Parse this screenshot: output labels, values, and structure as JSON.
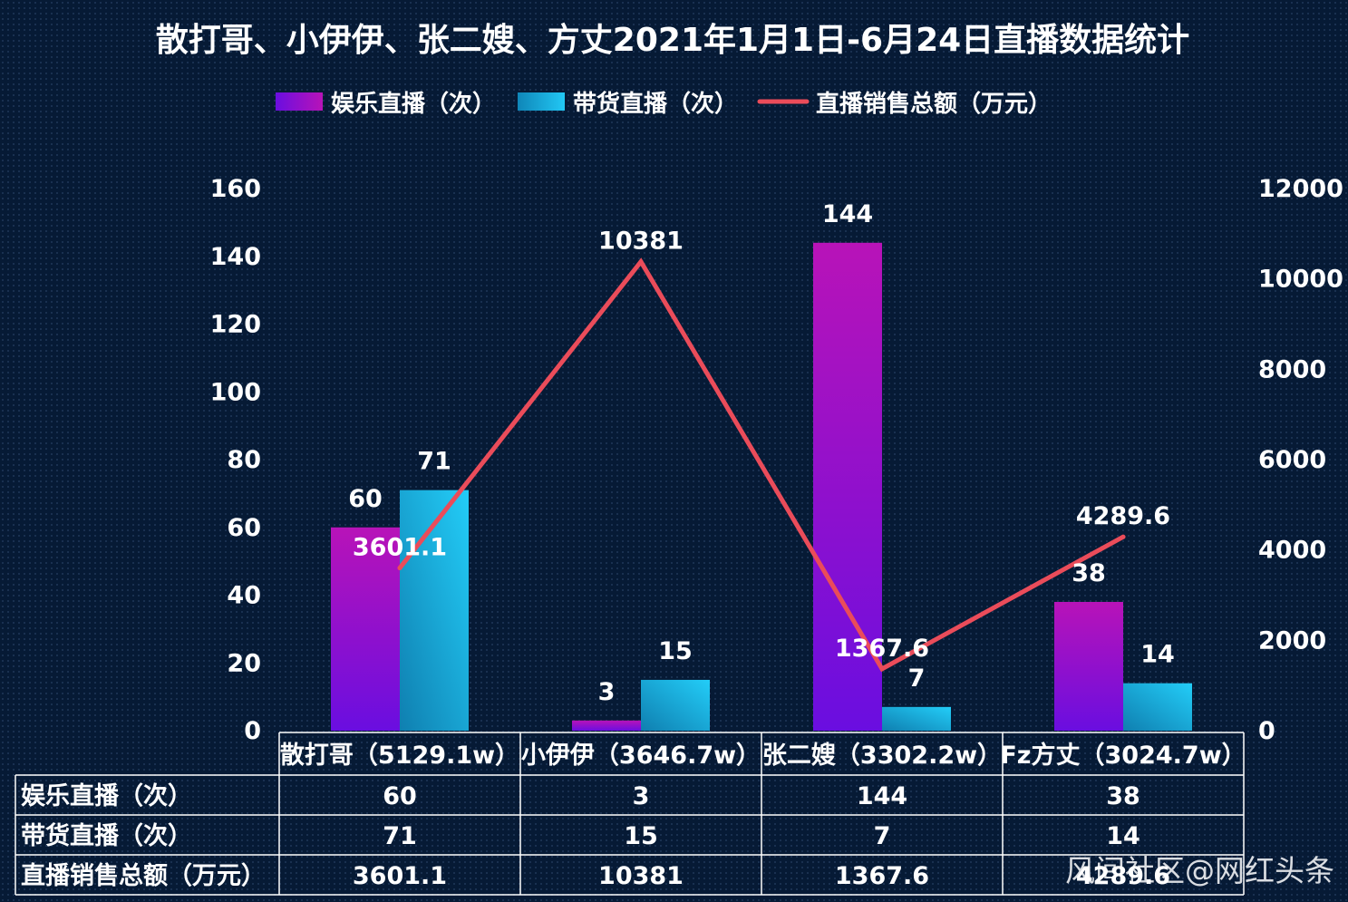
{
  "chart_data": {
    "type": "bar",
    "title": "散打哥、小伊伊、张二嫂、方丈2021年1月1日-6月24日直播数据统计",
    "categories": [
      "散打哥（5129.1w）",
      "小伊伊（3646.7w）",
      "张二嫂（3302.2w）",
      "Fz方丈（3024.7w）"
    ],
    "series": [
      {
        "name": "娱乐直播（次）",
        "type": "bar",
        "axis": "left",
        "values": [
          60,
          3,
          144,
          38
        ],
        "value_labels": [
          "60",
          "3",
          "144",
          "38"
        ],
        "colors": [
          "#6a0ee0",
          "#b813b8"
        ]
      },
      {
        "name": "带货直播（次）",
        "type": "bar",
        "axis": "left",
        "values": [
          71,
          15,
          7,
          14
        ],
        "value_labels": [
          "71",
          "15",
          "7",
          "14"
        ],
        "colors": [
          "#0f86b8",
          "#22c8f5"
        ]
      },
      {
        "name": "直播销售总额（万元）",
        "type": "line",
        "axis": "right",
        "values": [
          3601.1,
          10381,
          1367.6,
          4289.6
        ],
        "value_labels": [
          "3601.1",
          "10381",
          "1367.6",
          "4289.6"
        ],
        "colors": [
          "#ea4c5a"
        ]
      }
    ],
    "y_left": {
      "min": 0,
      "max": 160,
      "ticks": [
        "0",
        "20",
        "40",
        "60",
        "80",
        "100",
        "120",
        "140",
        "160"
      ]
    },
    "y_right": {
      "min": 0,
      "max": 12000,
      "ticks": [
        "0",
        "2000",
        "4000",
        "6000",
        "8000",
        "10000",
        "12000"
      ]
    },
    "legend_position": "top-center",
    "grid": false,
    "table": {
      "rows": [
        {
          "label": "娱乐直播（次）",
          "cells": [
            "60",
            "3",
            "144",
            "38"
          ]
        },
        {
          "label": "带货直播（次）",
          "cells": [
            "71",
            "15",
            "7",
            "14"
          ]
        },
        {
          "label": "直播销售总额（万元）",
          "cells": [
            "3601.1",
            "10381",
            "1367.6",
            "4289.6"
          ]
        }
      ]
    }
  },
  "watermark": "风间社区@网红头条",
  "background_color": "#061a35"
}
